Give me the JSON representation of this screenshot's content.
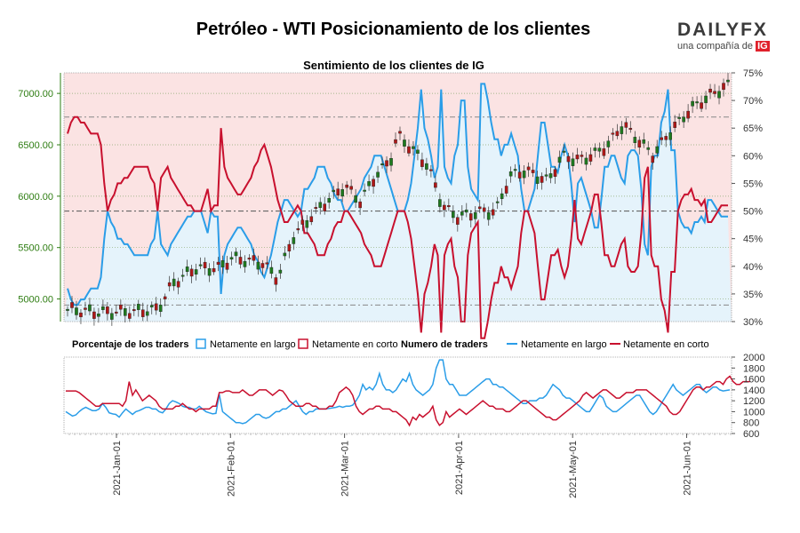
{
  "header": {
    "title": "Petróleo - WTI Posicionamiento de los clientes",
    "logo_text": "DAILYFX",
    "logo_sub": "una compañía de",
    "logo_ig": "IG"
  },
  "colors": {
    "long": "#2a9de8",
    "short": "#c8102e",
    "long_fill": "#e5f3fb",
    "short_fill": "#fbe3e3",
    "candle_up": "#1e7a1e",
    "candle_down": "#b01717",
    "price_axis": "#2e7d12"
  },
  "chart_data": [
    {
      "type": "candlestick+line",
      "title": "Sentimiento de los clientes de IG",
      "price_ylim": [
        4780,
        7200
      ],
      "price_ticks": [
        "5000.00",
        "5500.00",
        "6000.00",
        "6500.00",
        "7000.00"
      ],
      "pct_ylim": [
        30,
        75
      ],
      "pct_ticks": [
        "30%",
        "35%",
        "40%",
        "45%",
        "50%",
        "55%",
        "60%",
        "65%",
        "70%",
        "75%"
      ],
      "reference_lines_pct": [
        33,
        50,
        67
      ],
      "net_long_pct": [
        36,
        34,
        33,
        33,
        34,
        34,
        35,
        36,
        36,
        36,
        38,
        45,
        50,
        48,
        47,
        45,
        45,
        44,
        44,
        43,
        42,
        42,
        42,
        42,
        42,
        44,
        45,
        50,
        44,
        43,
        42,
        44,
        45,
        46,
        47,
        48,
        49,
        49,
        50,
        50,
        50,
        48,
        46,
        50,
        49,
        49,
        35,
        42,
        44,
        45,
        46,
        47,
        47,
        46,
        45,
        44,
        42,
        41,
        39,
        38,
        40,
        42,
        45,
        48,
        50,
        52,
        52,
        51,
        50,
        49,
        50,
        54,
        54,
        55,
        56,
        58,
        58,
        58,
        56,
        55,
        53,
        52,
        52,
        50,
        50,
        51,
        52,
        53,
        54,
        56,
        57,
        58,
        60,
        60,
        60,
        58,
        56,
        54,
        52,
        50,
        50,
        50,
        52,
        55,
        60,
        65,
        72,
        65,
        63,
        60,
        56,
        58,
        72,
        58,
        56,
        55,
        60,
        62,
        70,
        70,
        58,
        54,
        53,
        52,
        73,
        73,
        70,
        66,
        63,
        63,
        60,
        62,
        62,
        64,
        62,
        60,
        54,
        50,
        50,
        52,
        54,
        60,
        66,
        66,
        62,
        58,
        58,
        57,
        60,
        62,
        60,
        55,
        48,
        55,
        56,
        54,
        52,
        50,
        47,
        47,
        52,
        58,
        58,
        60,
        60,
        58,
        56,
        55,
        60,
        61,
        61,
        60,
        54,
        44,
        42,
        58,
        60,
        60,
        66,
        68,
        72,
        61,
        61,
        50,
        48,
        47,
        47,
        46,
        48,
        48,
        49,
        48,
        52,
        52,
        51,
        50,
        49,
        49,
        49
      ],
      "net_short_pct": [
        64,
        66,
        67,
        67,
        66,
        66,
        65,
        64,
        64,
        64,
        62,
        55,
        50,
        52,
        53,
        55,
        55,
        56,
        56,
        57,
        58,
        58,
        58,
        58,
        58,
        56,
        55,
        50,
        56,
        57,
        58,
        56,
        55,
        54,
        53,
        52,
        51,
        51,
        50,
        50,
        50,
        52,
        54,
        50,
        51,
        51,
        65,
        58,
        56,
        55,
        54,
        53,
        53,
        54,
        55,
        56,
        58,
        59,
        61,
        62,
        60,
        58,
        55,
        52,
        50,
        48,
        48,
        49,
        50,
        51,
        50,
        46,
        46,
        45,
        44,
        42,
        42,
        42,
        44,
        45,
        47,
        48,
        48,
        50,
        50,
        49,
        48,
        47,
        46,
        44,
        43,
        42,
        40,
        40,
        40,
        42,
        44,
        46,
        48,
        50,
        50,
        50,
        48,
        45,
        40,
        35,
        28,
        35,
        37,
        40,
        44,
        42,
        28,
        42,
        44,
        45,
        40,
        38,
        30,
        30,
        42,
        46,
        47,
        48,
        27,
        27,
        30,
        34,
        37,
        37,
        40,
        38,
        38,
        36,
        38,
        40,
        46,
        50,
        50,
        48,
        46,
        40,
        34,
        34,
        38,
        42,
        42,
        43,
        40,
        38,
        40,
        45,
        52,
        45,
        44,
        46,
        48,
        50,
        53,
        53,
        48,
        42,
        42,
        40,
        40,
        42,
        44,
        45,
        40,
        39,
        39,
        40,
        46,
        56,
        58,
        42,
        40,
        40,
        34,
        32,
        28,
        39,
        39,
        50,
        52,
        53,
        53,
        54,
        52,
        52,
        51,
        52,
        48,
        48,
        49,
        50,
        51,
        51,
        51
      ],
      "legend": {
        "pct_title": "Porcentaje de los traders",
        "pct_long": "Netamente en largo",
        "pct_short": "Netamente en corto",
        "num_title": "Numero de traders",
        "num_long": "Netamente en largo",
        "num_short": "Netamente en corto"
      }
    },
    {
      "type": "line",
      "ylim": [
        600,
        2000
      ],
      "ticks": [
        "600",
        "800",
        "1000",
        "1200",
        "1400",
        "1600",
        "1800",
        "2000"
      ],
      "x_labels": [
        "2021-Jan-01",
        "2021-Feb-01",
        "2021-Mar-01",
        "2021-Apr-01",
        "2021-May-01",
        "2021-Jun-01"
      ],
      "net_long_count": [
        1000,
        960,
        920,
        940,
        1000,
        1050,
        1080,
        1050,
        1020,
        1020,
        1050,
        1150,
        1080,
        980,
        960,
        950,
        900,
        980,
        1050,
        1000,
        950,
        1000,
        1020,
        1050,
        1080,
        1080,
        1050,
        1050,
        1000,
        980,
        1050,
        1150,
        1200,
        1180,
        1150,
        1100,
        1080,
        1080,
        1050,
        1050,
        1100,
        1050,
        1000,
        980,
        960,
        970,
        1320,
        1000,
        950,
        900,
        850,
        800,
        800,
        780,
        800,
        850,
        900,
        950,
        950,
        900,
        880,
        900,
        950,
        1000,
        1000,
        1050,
        1050,
        1100,
        1150,
        1200,
        1100,
        1000,
        950,
        1000,
        1000,
        1050,
        1050,
        1050,
        1050,
        1060,
        1070,
        1080,
        1100,
        1080,
        1100,
        1100,
        1120,
        1200,
        1300,
        1500,
        1400,
        1450,
        1400,
        1500,
        1700,
        1500,
        1400,
        1400,
        1350,
        1400,
        1500,
        1600,
        1550,
        1700,
        1500,
        1400,
        1350,
        1300,
        1350,
        1400,
        1500,
        1800,
        1950,
        1950,
        1600,
        1500,
        1500,
        1400,
        1300,
        1300,
        1300,
        1350,
        1400,
        1450,
        1500,
        1550,
        1600,
        1600,
        1500,
        1500,
        1450,
        1450,
        1400,
        1350,
        1300,
        1250,
        1200,
        1150,
        1150,
        1200,
        1200,
        1200,
        1250,
        1250,
        1300,
        1400,
        1500,
        1450,
        1400,
        1300,
        1250,
        1250,
        1200,
        1150,
        1100,
        1050,
        1000,
        1000,
        1100,
        1200,
        1300,
        1250,
        1100,
        1050,
        1000,
        1000,
        1050,
        1100,
        1150,
        1200,
        1250,
        1300,
        1300,
        1200,
        1100,
        1000,
        950,
        1000,
        1100,
        1200,
        1300,
        1400,
        1500,
        1400,
        1350,
        1300,
        1350,
        1400,
        1450,
        1500,
        1500,
        1400,
        1350,
        1400,
        1450,
        1450,
        1400,
        1380,
        1390,
        1400
      ],
      "net_short_count": [
        1380,
        1380,
        1380,
        1380,
        1350,
        1300,
        1250,
        1200,
        1150,
        1100,
        1100,
        1150,
        1150,
        1150,
        1150,
        1150,
        1150,
        1100,
        1200,
        1550,
        1300,
        1400,
        1300,
        1200,
        1250,
        1300,
        1250,
        1200,
        1100,
        1050,
        1050,
        1050,
        1050,
        1100,
        1100,
        1150,
        1100,
        1050,
        1050,
        1000,
        1050,
        1050,
        1050,
        1050,
        1100,
        1100,
        1350,
        1350,
        1380,
        1380,
        1350,
        1350,
        1350,
        1400,
        1350,
        1300,
        1300,
        1350,
        1400,
        1400,
        1400,
        1350,
        1300,
        1350,
        1400,
        1380,
        1300,
        1200,
        1150,
        1100,
        1100,
        1100,
        1150,
        1150,
        1100,
        1100,
        1050,
        1050,
        1050,
        1100,
        1100,
        1200,
        1350,
        1400,
        1450,
        1400,
        1300,
        1100,
        1000,
        950,
        1000,
        1050,
        1050,
        1100,
        1100,
        1050,
        1050,
        1050,
        1000,
        1000,
        950,
        900,
        850,
        750,
        900,
        850,
        950,
        900,
        950,
        1000,
        1100,
        850,
        750,
        800,
        1000,
        900,
        950,
        1000,
        1050,
        1000,
        950,
        1000,
        1050,
        1100,
        1150,
        1200,
        1150,
        1100,
        1100,
        1050,
        1050,
        1050,
        1000,
        1000,
        1050,
        1100,
        1150,
        1200,
        1200,
        1150,
        1100,
        1050,
        1000,
        950,
        900,
        900,
        850,
        850,
        900,
        950,
        1000,
        1050,
        1100,
        1150,
        1200,
        1300,
        1350,
        1300,
        1250,
        1300,
        1350,
        1400,
        1400,
        1350,
        1300,
        1250,
        1250,
        1300,
        1350,
        1350,
        1350,
        1400,
        1400,
        1400,
        1400,
        1350,
        1300,
        1250,
        1200,
        1150,
        1100,
        1000,
        950,
        950,
        1000,
        1100,
        1200,
        1300,
        1400,
        1450,
        1450,
        1400,
        1450,
        1450,
        1500,
        1550,
        1550,
        1500,
        1600,
        1650,
        1550,
        1500,
        1500,
        1550,
        1550,
        1550
      ]
    }
  ]
}
